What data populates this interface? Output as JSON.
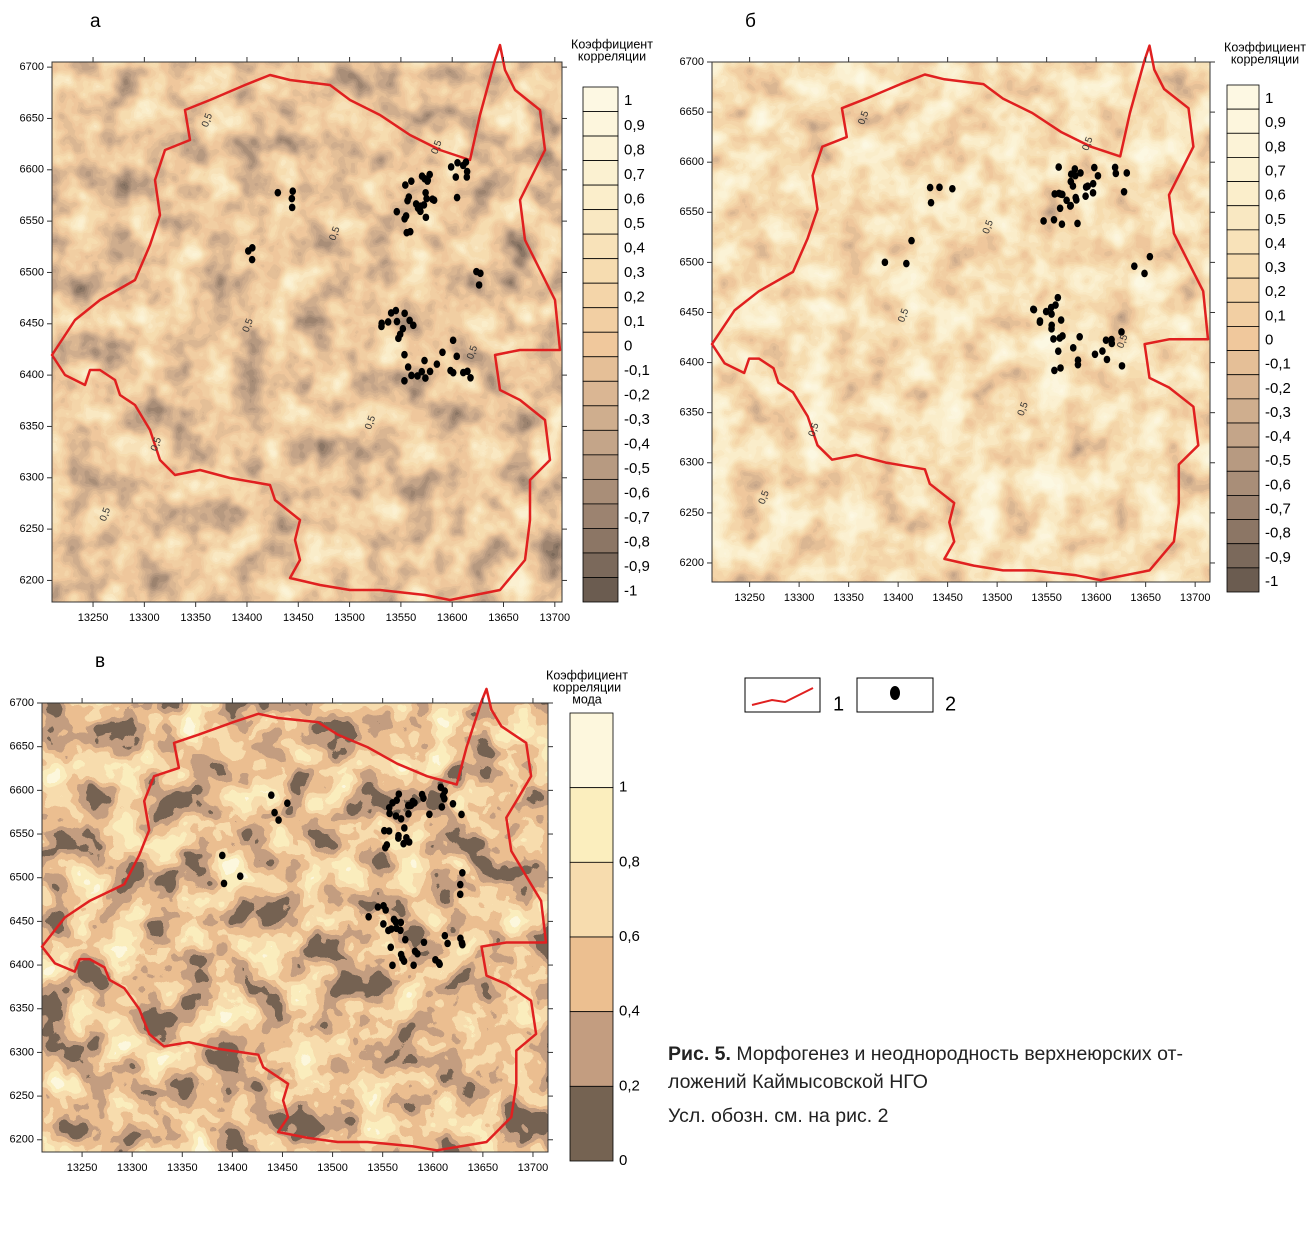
{
  "panels": [
    {
      "letter": "а",
      "xlim": [
        13210,
        13707
      ],
      "ylim": [
        6179,
        6705
      ],
      "xticks": [
        13250,
        13300,
        13350,
        13400,
        13450,
        13500,
        13550,
        13600,
        13650,
        13700
      ],
      "yticks": [
        6200,
        6250,
        6300,
        6350,
        6400,
        6450,
        6500,
        6550,
        6600,
        6650,
        6700
      ],
      "colorbar": {
        "title": [
          "Коэффициент",
          "корреляции"
        ],
        "labels": [
          "1",
          "0,9",
          "0,8",
          "0,7",
          "0,6",
          "0,5",
          "0,4",
          "0,3",
          "0,2",
          "0,1",
          "0",
          "-0,1",
          "-0,2",
          "-0,3",
          "-0,4",
          "-0,5",
          "-0,6",
          "-0,7",
          "-0,8",
          "-0,9",
          "-1"
        ]
      },
      "contour_label": "0,5"
    },
    {
      "letter": "б",
      "xlim": [
        13212,
        13715
      ],
      "ylim": [
        6181,
        6700
      ],
      "xticks": [
        13250,
        13300,
        13350,
        13400,
        13450,
        13500,
        13550,
        13600,
        13650,
        13700
      ],
      "yticks": [
        6200,
        6250,
        6300,
        6350,
        6400,
        6450,
        6500,
        6550,
        6600,
        6650,
        6700
      ],
      "colorbar": {
        "title": [
          "Коэффициент",
          "корреляции"
        ],
        "labels": [
          "1",
          "0,9",
          "0,8",
          "0,7",
          "0,6",
          "0,5",
          "0,4",
          "0,3",
          "0,2",
          "0,1",
          "0",
          "-0,1",
          "-0,2",
          "-0,3",
          "-0,4",
          "-0,5",
          "-0,6",
          "-0,7",
          "-0,8",
          "-0,9",
          "-1"
        ]
      },
      "contour_label": "0,5"
    },
    {
      "letter": "в",
      "xlim": [
        13210,
        13715
      ],
      "ylim": [
        6186,
        6700
      ],
      "xticks": [
        13250,
        13300,
        13350,
        13400,
        13450,
        13500,
        13550,
        13600,
        13650,
        13700
      ],
      "yticks": [
        6200,
        6250,
        6300,
        6350,
        6400,
        6450,
        6500,
        6550,
        6600,
        6650,
        6700
      ],
      "colorbar": {
        "title": [
          "Коэффициент",
          "корреляции",
          "мода"
        ],
        "labels": [
          "1",
          "0,8",
          "0,6",
          "0,4",
          "0,2",
          "0"
        ]
      }
    }
  ],
  "legend": {
    "items": [
      "1",
      "2"
    ]
  },
  "caption": {
    "label": "Рис. 5.",
    "lines": [
      "Морфогенез и неоднородность верхнеюрских от-",
      "ложений Каймысовской НГО"
    ],
    "note": "Усл. обозн. см. на рис. 2"
  }
}
